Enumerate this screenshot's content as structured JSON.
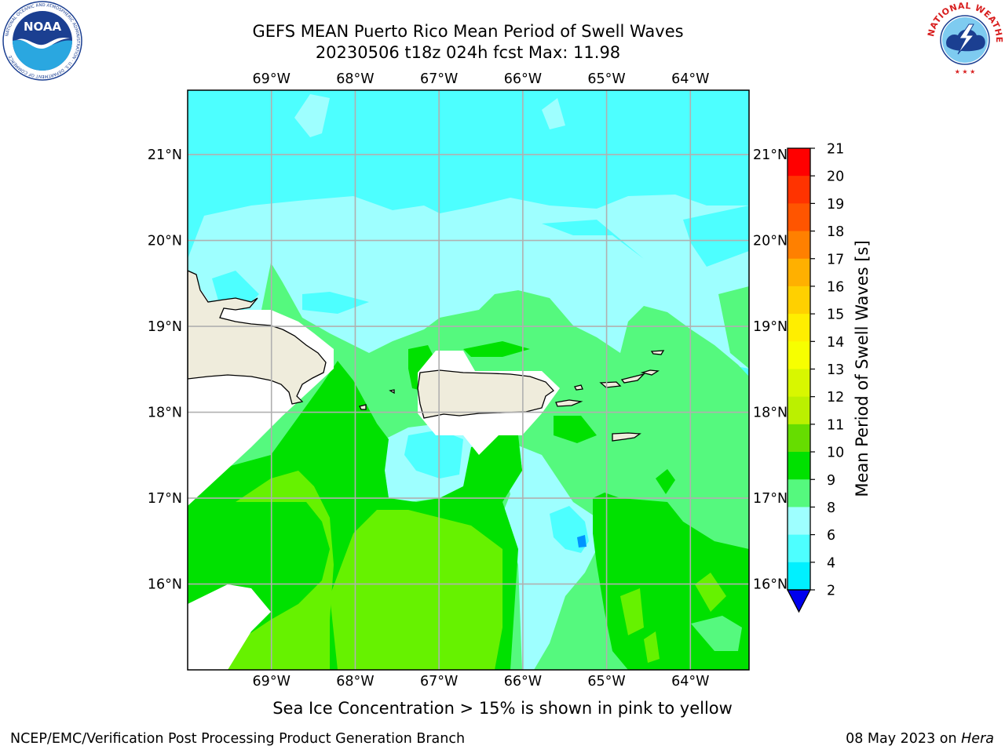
{
  "header": {
    "title_line1": "GEFS MEAN Puerto Rico Mean Period of Swell Waves",
    "title_line2": "20230506 t18z 024h fcst   Max: 11.98"
  },
  "map": {
    "top_lon_labels": [
      "69°W",
      "68°W",
      "67°W",
      "66°W",
      "65°W",
      "64°W"
    ],
    "bottom_lon_labels": [
      "69°W",
      "68°W",
      "67°W",
      "66°W",
      "65°W",
      "64°W"
    ],
    "left_lat_labels": [
      "21°N",
      "20°N",
      "19°N",
      "18°N",
      "17°N",
      "16°N"
    ],
    "right_lat_labels": [
      "21°N",
      "20°N",
      "19°N",
      "18°N",
      "17°N",
      "16°N"
    ],
    "lon_values": [
      -69,
      -68,
      -67,
      -66,
      -65,
      -64
    ],
    "lat_values": [
      21,
      20,
      19,
      18,
      17,
      16
    ],
    "extent": {
      "lon_min": -70.0,
      "lon_max": -63.3,
      "lat_min": 15.0,
      "lat_max": 21.75
    },
    "colors": {
      "land": "#efecdc",
      "coast": "#000000",
      "grid": "#b0b0b0",
      "c6_8": "#4dffff",
      "c8_9": "#9effff",
      "c9_10": "#55f97e",
      "c10_11": "#00e100",
      "c11_12": "#66f200",
      "c2_4": "#0000ee",
      "c4_6": "#0094ff"
    }
  },
  "colorbar": {
    "label": "Mean Period of Swell Waves [s]",
    "ticks": [
      "21",
      "20",
      "19",
      "18",
      "17",
      "16",
      "15",
      "14",
      "13",
      "12",
      "11",
      "10",
      "9",
      "8",
      "6",
      "4",
      "2"
    ],
    "colors": [
      "#ff0000",
      "#ff3300",
      "#ff5500",
      "#ff8000",
      "#ffb000",
      "#ffd000",
      "#ffee00",
      "#f7ff00",
      "#d8f700",
      "#bbf000",
      "#66dd00",
      "#00e100",
      "#55f97e",
      "#9effff",
      "#4dffff",
      "#00f0ff",
      "#0077ff",
      "#0000ee"
    ]
  },
  "note": "Sea Ice Concentration > 15% is shown in pink to yellow",
  "footer": {
    "left": "NCEP/EMC/Verification Post Processing Product Generation Branch",
    "right_date": "08 May 2023 on ",
    "right_host": "Hera"
  },
  "logos": {
    "left_text": "NOAA",
    "left_ring": "NATIONAL OCEANIC AND ATMOSPHERIC ADMINISTRATION · U.S. DEPARTMENT OF COMMERCE",
    "right_ring": "NATIONAL WEATHER SERVICE"
  }
}
